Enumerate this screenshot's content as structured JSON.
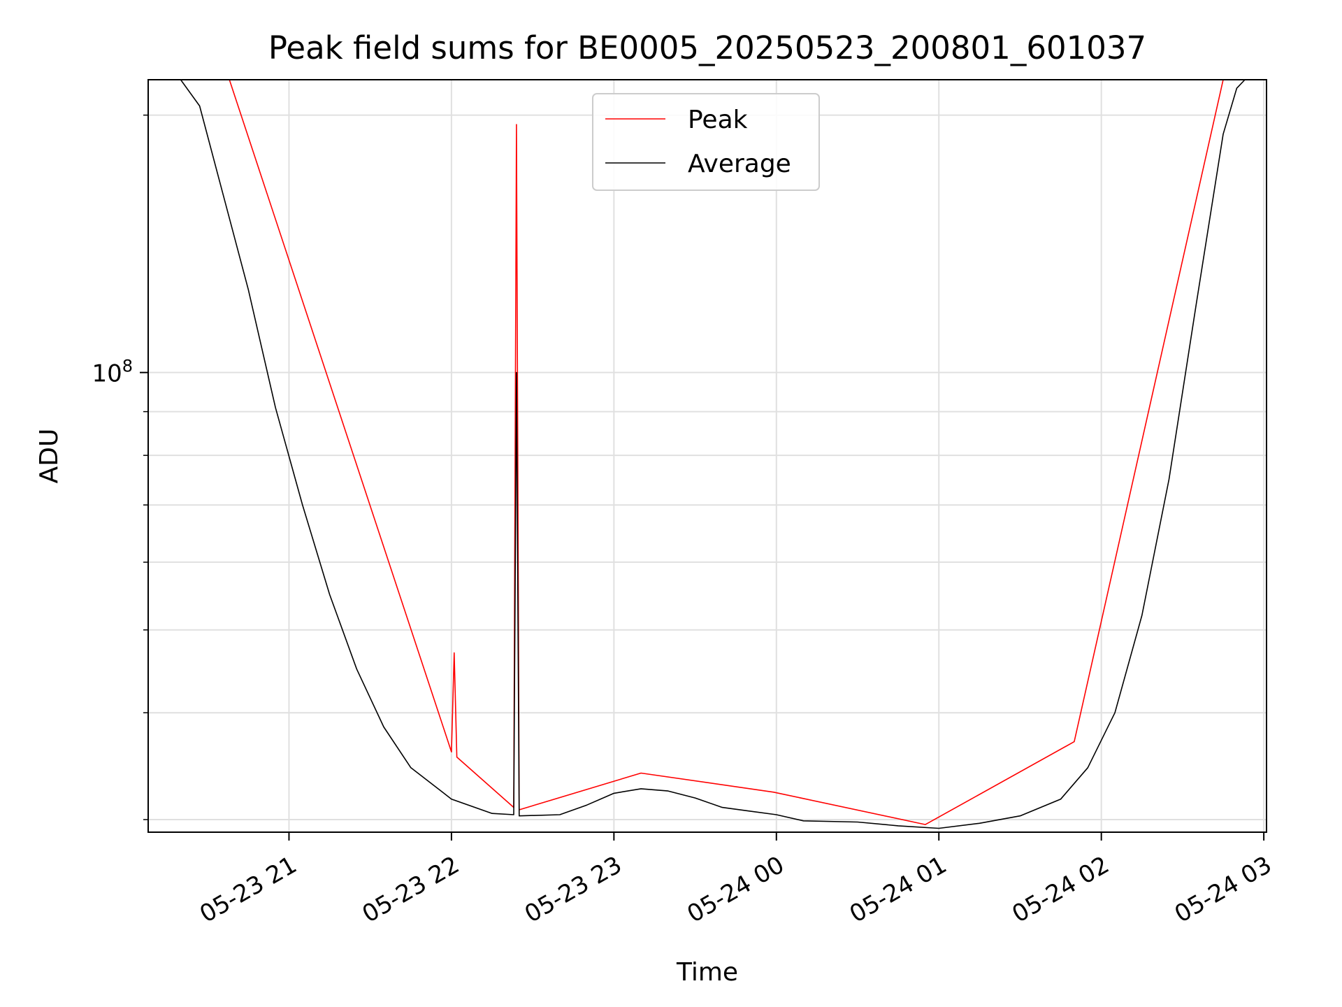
{
  "chart_data": {
    "type": "line",
    "title": "Peak field sums for BE0005_20250523_200801_601037",
    "xlabel": "Time",
    "ylabel": "ADU",
    "yscale": "log",
    "grid": true,
    "legend_placement": "upper-center",
    "xlim": [
      "2025-05-23 20:08",
      "2025-05-24 03:01"
    ],
    "ylim": [
      29000000,
      220000000
    ],
    "x_ticks": [
      {
        "value": "2025-05-23 21:00",
        "label": "05-23 21"
      },
      {
        "value": "2025-05-23 22:00",
        "label": "05-23 22"
      },
      {
        "value": "2025-05-23 23:00",
        "label": "05-23 23"
      },
      {
        "value": "2025-05-24 00:00",
        "label": "05-24 00"
      },
      {
        "value": "2025-05-24 01:00",
        "label": "05-24 01"
      },
      {
        "value": "2025-05-24 02:00",
        "label": "05-24 02"
      },
      {
        "value": "2025-05-24 03:00",
        "label": "05-24 03"
      }
    ],
    "y_major_ticks": [
      {
        "value": 100000000,
        "base": "10",
        "exponent": "8"
      }
    ],
    "y_minor_ticks": [
      30000000,
      40000000,
      50000000,
      60000000,
      70000000,
      80000000,
      90000000,
      200000000
    ],
    "series": [
      {
        "name": "Peak",
        "color": "#ff0000",
        "points": [
          [
            "2025-05-23 20:38",
            220000000
          ],
          [
            "2025-05-23 22:00",
            36000000
          ],
          [
            "2025-05-23 22:01",
            47000000
          ],
          [
            "2025-05-23 22:02",
            35500000
          ],
          [
            "2025-05-23 22:23",
            31000000
          ],
          [
            "2025-05-23 22:24",
            195000000
          ],
          [
            "2025-05-23 22:25",
            30800000
          ],
          [
            "2025-05-23 23:10",
            34000000
          ],
          [
            "2025-05-23 23:59",
            32300000
          ],
          [
            "2025-05-24 00:55",
            29600000
          ],
          [
            "2025-05-24 01:50",
            37000000
          ],
          [
            "2025-05-24 02:45",
            220000000
          ]
        ]
      },
      {
        "name": "Average",
        "color": "#000000",
        "points": [
          [
            "2025-05-23 20:10",
            220000000
          ],
          [
            "2025-05-23 20:20",
            220000000
          ],
          [
            "2025-05-23 20:27",
            205000000
          ],
          [
            "2025-05-23 20:36",
            160000000
          ],
          [
            "2025-05-23 20:45",
            125000000
          ],
          [
            "2025-05-23 20:55",
            91000000
          ],
          [
            "2025-05-23 21:05",
            70000000
          ],
          [
            "2025-05-23 21:15",
            55000000
          ],
          [
            "2025-05-23 21:25",
            45000000
          ],
          [
            "2025-05-23 21:35",
            38500000
          ],
          [
            "2025-05-23 21:45",
            34500000
          ],
          [
            "2025-05-23 22:00",
            31700000
          ],
          [
            "2025-05-23 22:15",
            30500000
          ],
          [
            "2025-05-23 22:23",
            30400000
          ],
          [
            "2025-05-23 22:24",
            100000000
          ],
          [
            "2025-05-23 22:25",
            30300000
          ],
          [
            "2025-05-23 22:40",
            30400000
          ],
          [
            "2025-05-23 22:50",
            31200000
          ],
          [
            "2025-05-23 23:00",
            32200000
          ],
          [
            "2025-05-23 23:10",
            32600000
          ],
          [
            "2025-05-23 23:20",
            32400000
          ],
          [
            "2025-05-23 23:30",
            31800000
          ],
          [
            "2025-05-23 23:40",
            31000000
          ],
          [
            "2025-05-23 23:50",
            30700000
          ],
          [
            "2025-05-24 00:00",
            30400000
          ],
          [
            "2025-05-24 00:10",
            29900000
          ],
          [
            "2025-05-24 00:30",
            29800000
          ],
          [
            "2025-05-24 00:45",
            29500000
          ],
          [
            "2025-05-24 01:00",
            29300000
          ],
          [
            "2025-05-24 01:15",
            29700000
          ],
          [
            "2025-05-24 01:30",
            30300000
          ],
          [
            "2025-05-24 01:45",
            31700000
          ],
          [
            "2025-05-24 01:55",
            34500000
          ],
          [
            "2025-05-24 02:05",
            40000000
          ],
          [
            "2025-05-24 02:15",
            52000000
          ],
          [
            "2025-05-24 02:25",
            75000000
          ],
          [
            "2025-05-24 02:35",
            120000000
          ],
          [
            "2025-05-24 02:45",
            190000000
          ],
          [
            "2025-05-24 02:50",
            215000000
          ],
          [
            "2025-05-24 02:53",
            220000000
          ]
        ]
      }
    ]
  }
}
